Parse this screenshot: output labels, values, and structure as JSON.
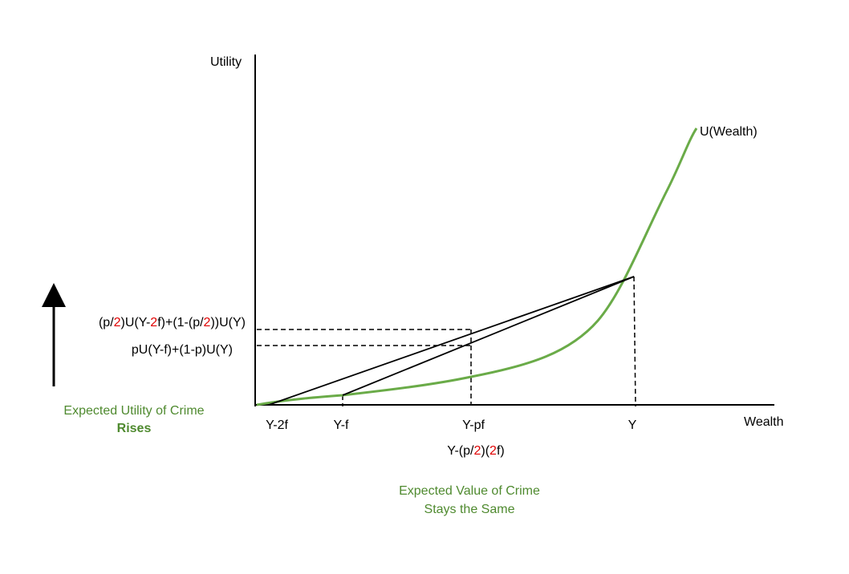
{
  "axes": {
    "y_label": "Utility",
    "x_label": "Wealth"
  },
  "curve_label": "U(Wealth)",
  "x_points": [
    "Y-2f",
    "Y-f",
    "Y-pf",
    "Y"
  ],
  "x_point_extra": [
    {
      "text": "Y-(p/",
      "color": "#000000"
    },
    {
      "text": "2",
      "color": "#e00000"
    },
    {
      "text": ")(",
      "color": "#000000"
    },
    {
      "text": "2",
      "color": "#e00000"
    },
    {
      "text": "f)",
      "color": "#000000"
    }
  ],
  "utility_labels": [
    [
      {
        "text": "(p/",
        "color": "#000000"
      },
      {
        "text": "2",
        "color": "#e00000"
      },
      {
        "text": ")U(Y-",
        "color": "#000000"
      },
      {
        "text": "2",
        "color": "#e00000"
      },
      {
        "text": "f)+(1-(p/",
        "color": "#000000"
      },
      {
        "text": "2",
        "color": "#e00000"
      },
      {
        "text": "))U(Y)",
        "color": "#000000"
      }
    ],
    [
      {
        "text": "pU(Y-f)+(1-p)U(Y)",
        "color": "#000000"
      }
    ]
  ],
  "utility_note": {
    "line1": "Expected Utility of Crime",
    "line2": "Rises"
  },
  "value_note": {
    "line1": "Expected Value of Crime",
    "line2": "Stays the Same"
  }
}
